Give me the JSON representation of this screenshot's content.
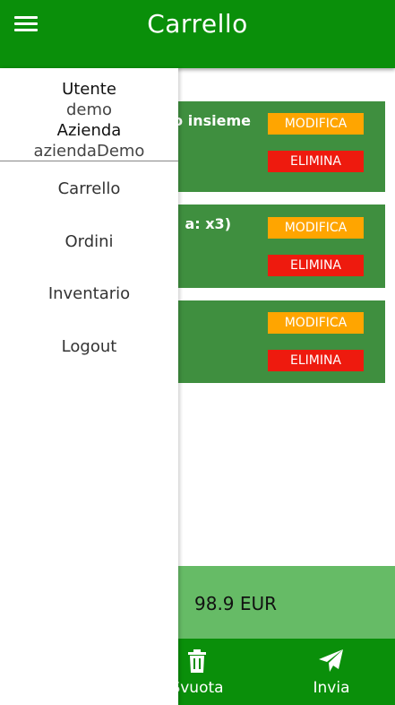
{
  "header": {
    "title": "Carrello",
    "menu_icon": "hamburger-icon"
  },
  "drawer": {
    "user_label": "Utente",
    "user_value": "demo",
    "company_label": "Azienda",
    "company_value": "aziendaDemo",
    "nav": [
      {
        "label": "Carrello"
      },
      {
        "label": "Ordini"
      },
      {
        "label": "Inventario"
      },
      {
        "label": "Logout"
      }
    ]
  },
  "cart": {
    "items": [
      {
        "text": "o insieme",
        "edit_label": "MODIFICA",
        "delete_label": "ELIMINA"
      },
      {
        "text": "a: x3)",
        "edit_label": "MODIFICA",
        "delete_label": "ELIMINA"
      },
      {
        "text": "",
        "edit_label": "MODIFICA",
        "delete_label": "ELIMINA"
      }
    ],
    "total": "98.9 EUR"
  },
  "actions": {
    "clear_label": "Svuota",
    "clear_icon": "trash-icon",
    "send_label": "Invia",
    "send_icon": "paper-plane-icon"
  },
  "colors": {
    "header": "#0a8f0a",
    "item": "#3f8f3f",
    "edit": "#ffa500",
    "delete": "#ee1a0e",
    "total_bar": "#66bb66"
  }
}
